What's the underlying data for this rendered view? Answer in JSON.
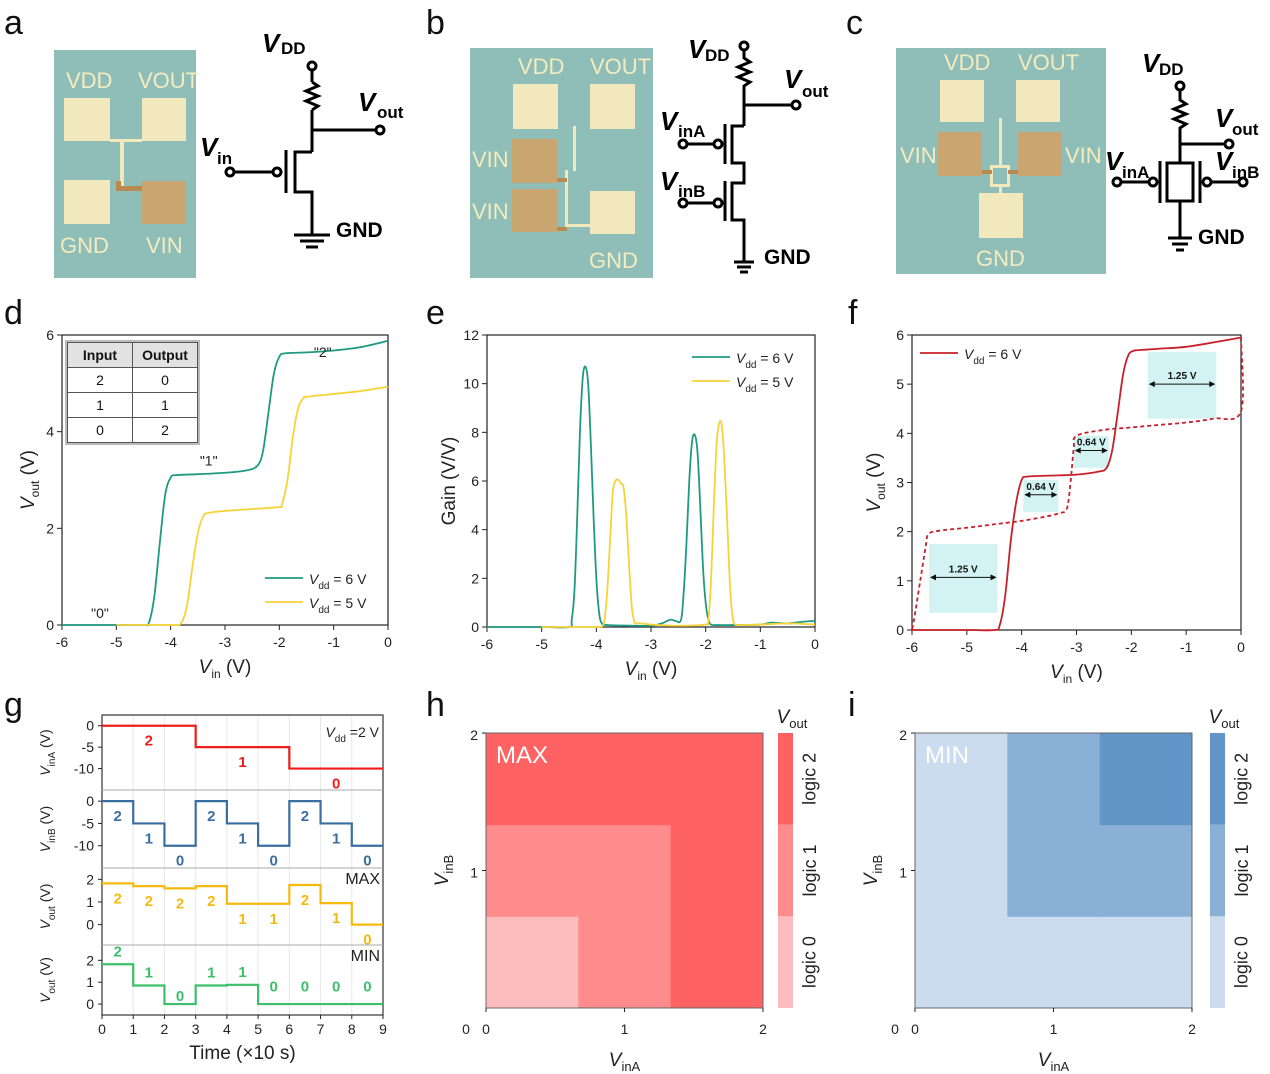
{
  "figure": {
    "panel_letters": [
      "a",
      "b",
      "c",
      "d",
      "e",
      "f",
      "g",
      "h",
      "i"
    ]
  },
  "panel_a": {
    "chip_labels": {
      "vdd": "VDD",
      "vout": "VOUT",
      "gnd": "GND",
      "vin": "VIN"
    },
    "schematic": {
      "vdd": "V",
      "vdd_sub": "DD",
      "vout": "V",
      "vout_sub": "out",
      "vin": "V",
      "vin_sub": "in",
      "gnd": "GND"
    }
  },
  "panel_b": {
    "chip_labels": {
      "vdd": "VDD",
      "vout": "VOUT",
      "vin1": "VIN",
      "vin2": "VIN",
      "gnd": "GND"
    },
    "schematic": {
      "vdd": "V",
      "vdd_sub": "DD",
      "vout": "V",
      "vout_sub": "out",
      "vina": "V",
      "vina_sub": "inA",
      "vinb": "V",
      "vinb_sub": "inB",
      "gnd": "GND"
    }
  },
  "panel_c": {
    "chip_labels": {
      "vdd": "VDD",
      "vout": "VOUT",
      "vin1": "VIN",
      "vin2": "VIN",
      "gnd": "GND"
    },
    "schematic": {
      "vdd": "V",
      "vdd_sub": "DD",
      "vout": "V",
      "vout_sub": "out",
      "vina": "V",
      "vina_sub": "inA",
      "vinb": "V",
      "vinb_sub": "inB",
      "gnd": "GND"
    }
  },
  "colors": {
    "teal": "#1f9a82",
    "yellow": "#f7d33a",
    "red_curve": "#c8202a",
    "hyst_box": "#d3f3f3",
    "vina_red": "#ee1c1c",
    "vinb_blue": "#3a6ea0",
    "max_orange": "#f5b90f",
    "min_green": "#3cbf6a",
    "max_logic": [
      "#fdbdbe",
      "#fe8c8c",
      "#fe6262"
    ],
    "min_logic": [
      "#cbdcee",
      "#8ab0d6",
      "#6396c8"
    ],
    "chip_bg": "#8fbdb8",
    "pad": "#f1e8bd",
    "pad_gate": "#c9a56f"
  },
  "chart_data": [
    {
      "id": "d",
      "type": "line",
      "title": "",
      "xlabel": "V_in (V)",
      "ylabel": "V_out (V)",
      "xlim": [
        -6,
        0
      ],
      "ylim": [
        0,
        6
      ],
      "xticks": [
        "-6",
        "-5",
        "-4",
        "-3",
        "-2",
        "-1",
        "0"
      ],
      "yticks": [
        "0",
        "2",
        "4",
        "6"
      ],
      "legend": {
        "placement": "bottom-right",
        "entries": [
          "V_dd = 6 V",
          "V_dd = 5 V"
        ]
      },
      "annotations": [
        "\"0\"",
        "\"1\"",
        "\"2\""
      ],
      "table": {
        "headers": [
          "Input",
          "Output"
        ],
        "rows": [
          [
            "2",
            "0"
          ],
          [
            "1",
            "1"
          ],
          [
            "0",
            "2"
          ]
        ]
      },
      "series": [
        {
          "name": "V_dd = 6 V",
          "color": "#1f9a82",
          "x": [
            -6,
            -5,
            -4.5,
            -4.4,
            -4.3,
            -4.2,
            -4.1,
            -4.0,
            -3.9,
            -3.5,
            -3.0,
            -2.6,
            -2.4,
            -2.3,
            -2.2,
            -2.1,
            -2.0,
            -1.9,
            -1.5,
            -1.0,
            -0.5,
            0
          ],
          "y": [
            0,
            0,
            0,
            0.05,
            0.6,
            1.7,
            2.7,
            3.05,
            3.1,
            3.12,
            3.15,
            3.2,
            3.3,
            3.6,
            4.4,
            5.2,
            5.55,
            5.62,
            5.64,
            5.68,
            5.75,
            5.88
          ]
        },
        {
          "name": "V_dd = 5 V",
          "color": "#f7d33a",
          "x": [
            -5,
            -4.5,
            -4.0,
            -3.9,
            -3.8,
            -3.7,
            -3.6,
            -3.5,
            -3.4,
            -3.3,
            -3.0,
            -2.5,
            -2.0,
            -1.95,
            -1.85,
            -1.75,
            -1.65,
            -1.55,
            -1.5,
            -1.0,
            -0.5,
            0
          ],
          "y": [
            0,
            0,
            0,
            0,
            0.05,
            0.4,
            1.2,
            1.9,
            2.25,
            2.32,
            2.36,
            2.4,
            2.44,
            2.5,
            3.0,
            3.9,
            4.5,
            4.7,
            4.72,
            4.78,
            4.84,
            4.93
          ]
        }
      ]
    },
    {
      "id": "e",
      "type": "line",
      "title": "",
      "xlabel": "V_in (V)",
      "ylabel": "Gain (V/V)",
      "xlim": [
        -6,
        0
      ],
      "ylim": [
        0,
        12
      ],
      "xticks": [
        "-6",
        "-5",
        "-4",
        "-3",
        "-2",
        "-1",
        "0"
      ],
      "yticks": [
        "0",
        "2",
        "4",
        "6",
        "8",
        "10",
        "12"
      ],
      "legend": {
        "placement": "top-right",
        "entries": [
          "V_dd = 6 V",
          "V_dd = 5 V"
        ]
      },
      "series": [
        {
          "name": "V_dd = 6 V",
          "color": "#1f9a82",
          "x": [
            -6,
            -5,
            -4.5,
            -4.45,
            -4.4,
            -4.35,
            -4.3,
            -4.25,
            -4.2,
            -4.15,
            -4.1,
            -4.05,
            -4.0,
            -3.95,
            -3.9,
            -3.8,
            -3.5,
            -3.0,
            -2.8,
            -2.65,
            -2.55,
            -2.45,
            -2.4,
            -2.35,
            -2.3,
            -2.25,
            -2.2,
            -2.15,
            -2.1,
            -2.05,
            -2.0,
            -1.95,
            -1.9,
            -1.8,
            -1.5,
            -1.0,
            -0.8,
            -0.5,
            -0.2,
            0
          ],
          "y": [
            0,
            0,
            0,
            0.3,
            1.5,
            4.5,
            8.0,
            10.2,
            10.7,
            10.0,
            7.5,
            4.5,
            2.0,
            0.6,
            0.15,
            0.08,
            0.06,
            0.05,
            0.15,
            0.3,
            0.25,
            0.3,
            1.5,
            3.5,
            6.0,
            7.6,
            7.9,
            7.2,
            5.0,
            2.5,
            1.0,
            0.3,
            0.1,
            0.08,
            0.08,
            0.1,
            0.18,
            0.15,
            0.22,
            0.25
          ]
        },
        {
          "name": "V_dd = 5 V",
          "color": "#f7d33a",
          "x": [
            -5,
            -4.5,
            -4.0,
            -3.9,
            -3.85,
            -3.8,
            -3.75,
            -3.7,
            -3.65,
            -3.6,
            -3.55,
            -3.5,
            -3.45,
            -3.4,
            -3.35,
            -3.3,
            -3.25,
            -3.2,
            -3.0,
            -2.5,
            -2.0,
            -1.95,
            -1.9,
            -1.85,
            -1.8,
            -1.75,
            -1.7,
            -1.65,
            -1.6,
            -1.55,
            -1.5,
            -1.45,
            -1.4,
            -1.0,
            -0.5,
            0
          ],
          "y": [
            0,
            0,
            0,
            0.02,
            0.3,
            1.5,
            3.5,
            5.5,
            6.0,
            6.05,
            5.9,
            5.7,
            4.5,
            2.5,
            0.8,
            0.2,
            0.15,
            0.15,
            0.1,
            0.05,
            0.1,
            0.3,
            2.0,
            5.0,
            7.5,
            8.4,
            8.2,
            6.5,
            4.0,
            1.5,
            0.3,
            0.1,
            0.08,
            0.1,
            0.15,
            0.1
          ]
        }
      ]
    },
    {
      "id": "f",
      "type": "line",
      "title": "",
      "xlabel": "V_in (V)",
      "ylabel": "V_out (V)",
      "xlim": [
        -6,
        0
      ],
      "ylim": [
        0,
        6
      ],
      "xticks": [
        "-6",
        "-5",
        "-4",
        "-3",
        "-2",
        "-1",
        "0"
      ],
      "yticks": [
        "0",
        "1",
        "2",
        "3",
        "4",
        "5",
        "6"
      ],
      "legend": {
        "placement": "top-left",
        "entries": [
          "V_dd = 6 V"
        ]
      },
      "series": [
        {
          "name": "V_dd = 6 V forward",
          "color": "#c8202a",
          "style": "solid",
          "x": [
            -6,
            -5,
            -4.5,
            -4.4,
            -4.3,
            -4.2,
            -4.1,
            -4.0,
            -3.9,
            -3.5,
            -3.0,
            -2.6,
            -2.45,
            -2.35,
            -2.25,
            -2.15,
            -2.05,
            -1.95,
            -1.9,
            -1.5,
            -1.0,
            -0.5,
            0
          ],
          "y": [
            0,
            0,
            0,
            0.1,
            0.7,
            1.8,
            2.6,
            3.05,
            3.12,
            3.14,
            3.16,
            3.22,
            3.3,
            3.65,
            4.4,
            5.2,
            5.6,
            5.68,
            5.69,
            5.72,
            5.76,
            5.85,
            5.95
          ]
        },
        {
          "name": "V_dd = 6 V reverse",
          "color": "#c8202a",
          "style": "dashed",
          "x": [
            0,
            0,
            -0.5,
            -1.0,
            -1.5,
            -2.0,
            -2.5,
            -3.0,
            -3.05,
            -3.1,
            -3.15,
            -3.2,
            -3.3,
            -3.5,
            -4.0,
            -4.5,
            -5.0,
            -5.5,
            -5.7,
            -5.75,
            -5.85,
            -5.95,
            -6.0
          ],
          "y": [
            5.95,
            4.45,
            4.3,
            4.22,
            4.17,
            4.12,
            4.07,
            3.95,
            3.7,
            3.1,
            2.6,
            2.42,
            2.38,
            2.32,
            2.22,
            2.15,
            2.08,
            2.02,
            1.95,
            1.7,
            1.0,
            0.3,
            0
          ]
        }
      ],
      "annotations": [
        {
          "label": "1.25 V",
          "x_range": [
            -5.69,
            -4.44
          ],
          "box_y": [
            0.35,
            1.75
          ],
          "arrow_y": 1.07
        },
        {
          "label": "0.64 V",
          "x_range": [
            -3.97,
            -3.33
          ],
          "box_y": [
            2.4,
            3.05
          ],
          "arrow_y": 2.75
        },
        {
          "label": "0.64 V",
          "x_range": [
            -3.05,
            -2.41
          ],
          "box_y": [
            3.3,
            3.95
          ],
          "arrow_y": 3.65
        },
        {
          "label": "1.25 V",
          "x_range": [
            -1.7,
            -0.45
          ],
          "box_y": [
            4.3,
            5.65
          ],
          "arrow_y": 5.0
        }
      ]
    },
    {
      "id": "g",
      "type": "line",
      "title": "",
      "xlabel": "Time (×10 s)",
      "xlim": [
        0,
        9
      ],
      "xticks": [
        "0",
        "1",
        "2",
        "3",
        "4",
        "5",
        "6",
        "7",
        "8",
        "9"
      ],
      "subplots": [
        {
          "ylabel": "V_inA (V)",
          "yticks": [
            "0",
            "-5",
            "-10"
          ],
          "ylim": [
            -15,
            2.5
          ],
          "color": "#ee1c1c",
          "annotation": "V_dd =2 V",
          "steps": [
            0,
            0,
            0,
            -5,
            -5,
            -5,
            -10,
            -10,
            -10
          ],
          "logic_labels": [
            "2",
            "1",
            "0"
          ],
          "logic_label_x": [
            1.5,
            4.5,
            7.5
          ]
        },
        {
          "ylabel": "V_inB (V)",
          "yticks": [
            "0",
            "-5",
            "-10"
          ],
          "ylim": [
            -15,
            2.5
          ],
          "color": "#3a6ea0",
          "steps": [
            0,
            -5,
            -10,
            0,
            -5,
            -10,
            0,
            -5,
            -10
          ],
          "logic_labels": [
            "2",
            "1",
            "0",
            "2",
            "1",
            "0",
            "2",
            "1",
            "0"
          ]
        },
        {
          "ylabel": "V_out (V)",
          "yticks": [
            "0",
            "1",
            "2"
          ],
          "ylim": [
            -0.9,
            2.5
          ],
          "color": "#f5b90f",
          "annotation": "MAX",
          "steps": [
            1.82,
            1.7,
            1.6,
            1.7,
            0.92,
            0.92,
            1.75,
            0.95,
            0.0
          ],
          "logic_labels": [
            "2",
            "2",
            "2",
            "2",
            "1",
            "1",
            "2",
            "1",
            "0"
          ]
        },
        {
          "ylabel": "V_out (V)",
          "yticks": [
            "0",
            "1",
            "2"
          ],
          "ylim": [
            -0.5,
            2.7
          ],
          "color": "#3cbf6a",
          "annotation": "MIN",
          "steps": [
            1.82,
            0.85,
            0.0,
            0.85,
            0.88,
            0.0,
            0.0,
            0.0,
            0.0
          ],
          "logic_labels": [
            "2",
            "1",
            "0",
            "1",
            "1",
            "0",
            "0",
            "0",
            "0"
          ]
        }
      ]
    },
    {
      "id": "h",
      "type": "heatmap",
      "title": "MAX",
      "xlabel": "V_inA",
      "ylabel": "V_inB",
      "xlim": [
        0,
        2
      ],
      "ylim": [
        0,
        2
      ],
      "xticks": [
        "0",
        "1",
        "2"
      ],
      "yticks": [
        "0",
        "1",
        "2"
      ],
      "colorbar": {
        "title": "V_out",
        "labels": [
          "logic 0",
          "logic 1",
          "logic 2"
        ]
      },
      "grid_rows_bottom_to_top": [
        [
          0,
          1,
          2
        ],
        [
          1,
          1,
          2
        ],
        [
          2,
          2,
          2
        ]
      ]
    },
    {
      "id": "i",
      "type": "heatmap",
      "title": "MIN",
      "xlabel": "V_inA",
      "ylabel": "V_inB",
      "xlim": [
        0,
        2
      ],
      "ylim": [
        0,
        2
      ],
      "xticks": [
        "0",
        "1",
        "2"
      ],
      "yticks": [
        "0",
        "1",
        "2"
      ],
      "colorbar": {
        "title": "V_out",
        "labels": [
          "logic 0",
          "logic 1",
          "logic 2"
        ]
      },
      "grid_rows_bottom_to_top": [
        [
          0,
          0,
          0
        ],
        [
          0,
          1,
          1
        ],
        [
          0,
          1,
          2
        ]
      ]
    }
  ]
}
